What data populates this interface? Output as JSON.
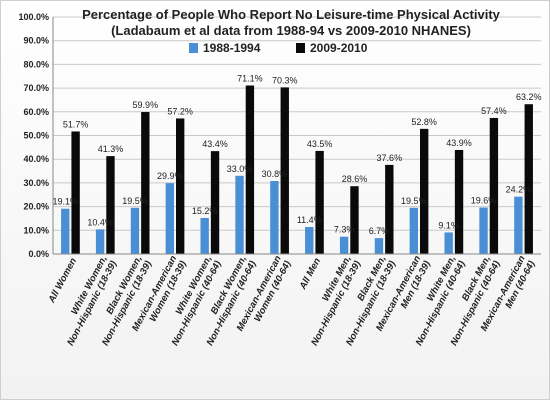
{
  "chart_data": {
    "type": "bar",
    "title": "Percentage of People Who Report No Leisure-time Physical Activity",
    "subtitle": "(Ladabaum et al data from 1988-94 vs 2009-2010 NHANES)",
    "xlabel": "",
    "ylabel": "",
    "ylim": [
      0,
      100
    ],
    "yticks": [
      "0.0%",
      "10.0%",
      "20.0%",
      "30.0%",
      "40.0%",
      "50.0%",
      "60.0%",
      "70.0%",
      "80.0%",
      "90.0%",
      "100.0%"
    ],
    "categories": [
      "All Women",
      "White Women, Non-Hispanic (18-39)",
      "Black Women, Non-Hispanic (18-39)",
      "Mexican-American Women (18-39)",
      "White Women, Non-Hispanic (40-64)",
      "Black Women, Non-Hispanic (40-64)",
      "Mexican-American Women (40-64)",
      "All Men",
      "White Men, Non-Hispanic (18-39)",
      "Black Men, Non-Hispanic (18-39)",
      "Mexican-American Men (18-39)",
      "White Men, Non-Hispanic (40-64)",
      "Black Men, Non-Hispanic (40-64)",
      "Mexican-American Men (40-64)"
    ],
    "series": [
      {
        "name": "1988-1994",
        "color": "#4a8fd6",
        "values": [
          19.1,
          10.4,
          19.5,
          29.9,
          15.2,
          33.0,
          30.8,
          11.4,
          7.3,
          6.7,
          19.5,
          9.1,
          19.6,
          24.2
        ],
        "labels": [
          "19.1%",
          "10.4%",
          "19.5%",
          "29.9%",
          "15.2%",
          "33.0%",
          "30.8%",
          "11.4%",
          "7.3%",
          "6.7%",
          "19.5%",
          "9.1%",
          "19.6%",
          "24.2%"
        ]
      },
      {
        "name": "2009-2010",
        "color": "#0a0a0a",
        "values": [
          51.7,
          41.3,
          59.9,
          57.2,
          43.4,
          71.1,
          70.3,
          43.5,
          28.6,
          37.6,
          52.8,
          43.9,
          57.4,
          63.2
        ],
        "labels": [
          "51.7%",
          "41.3%",
          "59.9%",
          "57.2%",
          "43.4%",
          "71.1%",
          "70.3%",
          "43.5%",
          "28.6%",
          "37.6%",
          "52.8%",
          "43.9%",
          "57.4%",
          "63.2%"
        ]
      }
    ],
    "grid": true,
    "legend_position": "top-center"
  }
}
